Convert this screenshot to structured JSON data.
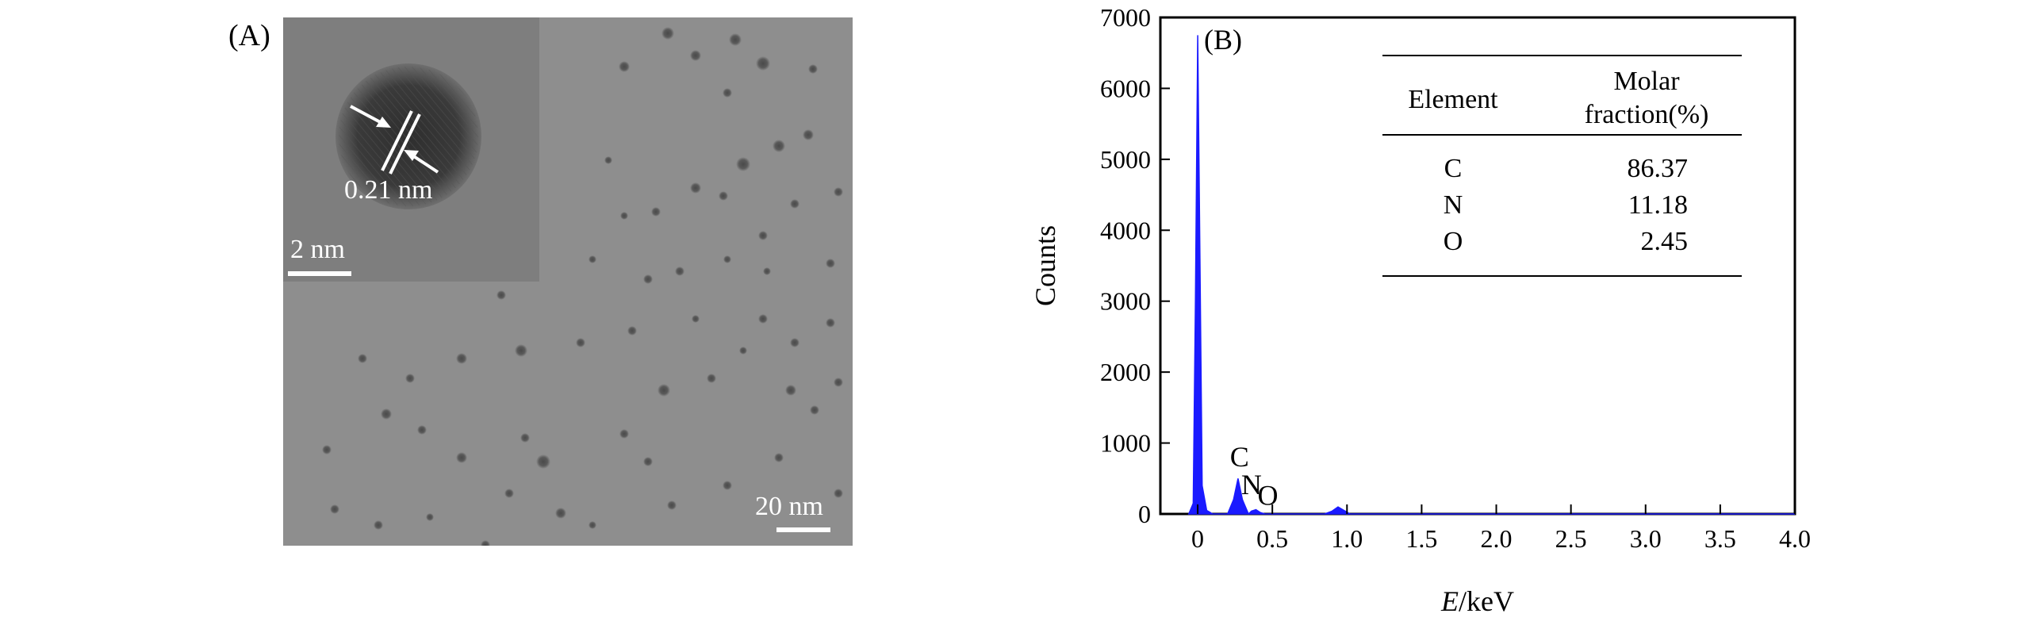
{
  "panel_a": {
    "label": "(A)",
    "inset_lattice_label": "0.21 nm",
    "inset_scalebar_label": "2 nm",
    "main_scalebar_label": "20 nm"
  },
  "chart_data": {
    "type": "area",
    "panel_label": "(B)",
    "xlabel_italic": "E",
    "xlabel_rest": "/keV",
    "ylabel": "Counts",
    "xlim": [
      -0.25,
      4.0
    ],
    "ylim": [
      0,
      7000
    ],
    "xticks": [
      "0",
      "0.5",
      "1.0",
      "1.5",
      "2.0",
      "2.5",
      "3.0",
      "3.5",
      "4.0"
    ],
    "yticks": [
      "0",
      "1000",
      "2000",
      "3000",
      "4000",
      "5000",
      "6000",
      "7000"
    ],
    "xtick_values": [
      0,
      0.5,
      1.0,
      1.5,
      2.0,
      2.5,
      3.0,
      3.5,
      4.0
    ],
    "ytick_values": [
      0,
      1000,
      2000,
      3000,
      4000,
      5000,
      6000,
      7000
    ],
    "series": [
      {
        "color": "#1a1aff",
        "x": [
          -0.06,
          -0.03,
          -0.015,
          0.0,
          0.015,
          0.03,
          0.06,
          0.1,
          0.2,
          0.24,
          0.27,
          0.3,
          0.34,
          0.36,
          0.39,
          0.42,
          0.45,
          0.85,
          0.9,
          0.94,
          0.98,
          1.02,
          1.2,
          4.0
        ],
        "y": [
          0,
          150,
          3000,
          6750,
          3600,
          400,
          50,
          0,
          0,
          200,
          500,
          200,
          0,
          40,
          60,
          20,
          0,
          0,
          40,
          100,
          50,
          0,
          0,
          0
        ]
      }
    ],
    "annotations": [
      {
        "text": "C",
        "x": 0.28,
        "y": 670
      },
      {
        "text": "N",
        "x": 0.36,
        "y": 280
      },
      {
        "text": "O",
        "x": 0.47,
        "y": 130
      }
    ],
    "table": {
      "header_left": "Element",
      "header_right_line1": "Molar",
      "header_right_line2": "fraction(%)",
      "rows": [
        {
          "element": "C",
          "fraction": "86.37"
        },
        {
          "element": "N",
          "fraction": "11.18"
        },
        {
          "element": "O",
          "fraction": "2.45"
        }
      ]
    }
  }
}
